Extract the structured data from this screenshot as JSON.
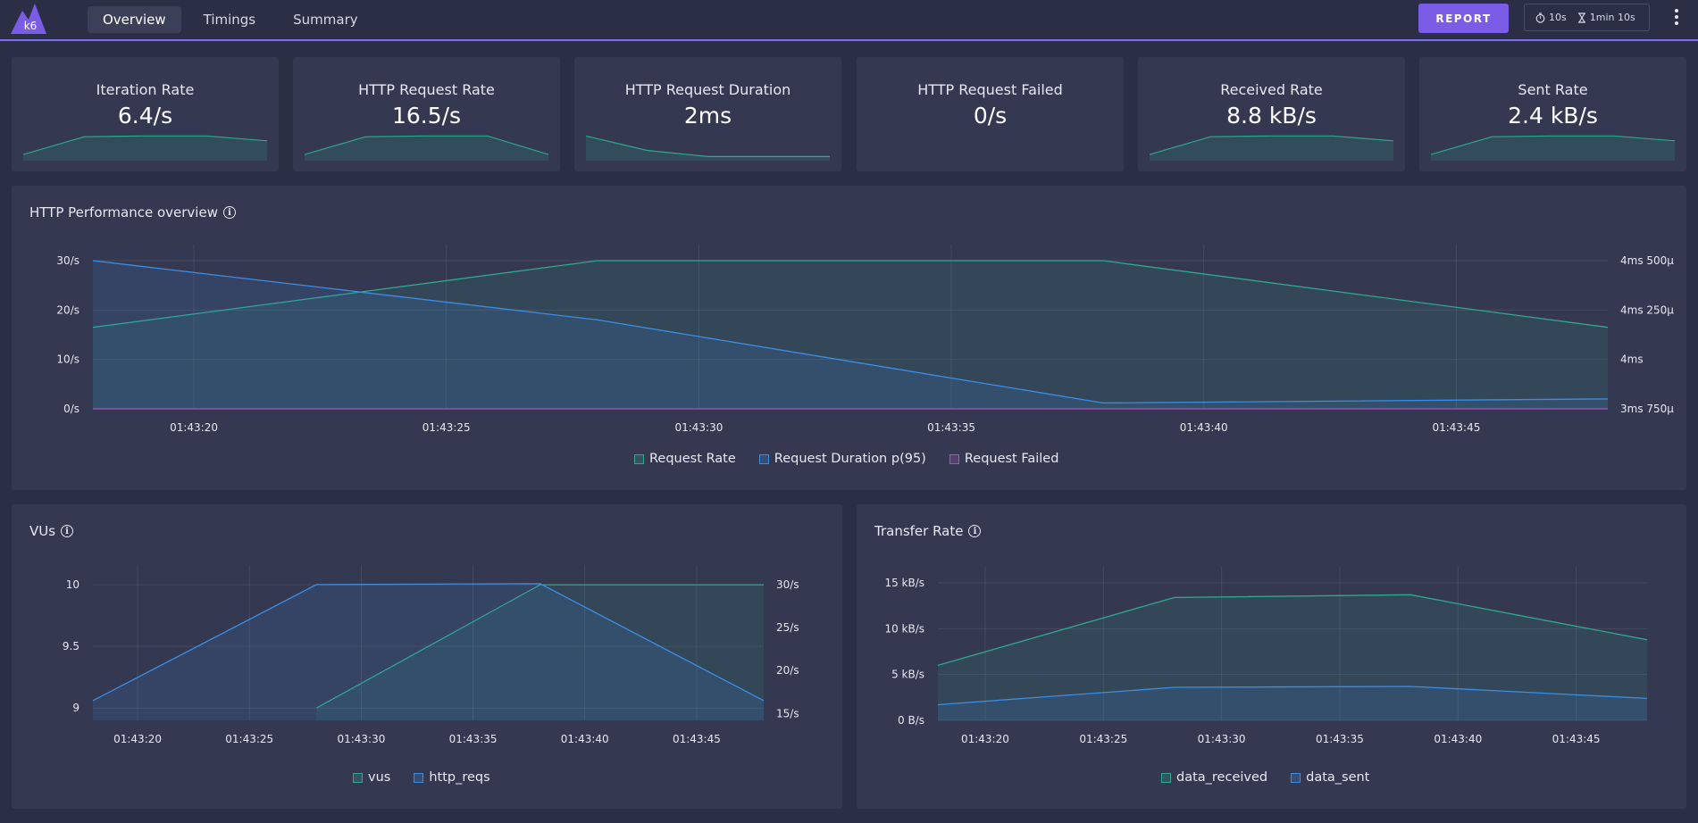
{
  "colors": {
    "accent": "#7b5ce6",
    "teal": "#2fa88f",
    "blue": "#3a8ee6",
    "magenta": "#b44fc2"
  },
  "header": {
    "logo_text": "k6",
    "tabs": [
      {
        "label": "Overview",
        "active": true
      },
      {
        "label": "Timings",
        "active": false
      },
      {
        "label": "Summary",
        "active": false
      }
    ],
    "report_label": "REPORT",
    "period": {
      "icon": "stopwatch-icon",
      "value": "10s"
    },
    "duration": {
      "icon": "hourglass-icon",
      "value": "1min 10s"
    },
    "menu_icon": "kebab-menu-icon"
  },
  "stats": [
    {
      "title": "Iteration Rate",
      "value": "6.4/s",
      "spark": [
        1.5,
        5.8,
        6.0,
        6.0,
        4.8
      ],
      "sparkMax": 6.5
    },
    {
      "title": "HTTP Request Rate",
      "value": "16.5/s",
      "spark": [
        1.5,
        5.8,
        6.0,
        6.0,
        1.5
      ],
      "sparkMax": 6.5
    },
    {
      "title": "HTTP Request Duration",
      "value": "2ms",
      "spark": [
        6.0,
        2.5,
        1.0,
        1.0,
        1.0
      ],
      "sparkMax": 6.5
    },
    {
      "title": "HTTP Request Failed",
      "value": "0/s",
      "spark": [],
      "sparkMax": 6.5
    },
    {
      "title": "Received Rate",
      "value": "8.8 kB/s",
      "spark": [
        1.5,
        5.8,
        6.0,
        6.0,
        4.8
      ],
      "sparkMax": 6.5
    },
    {
      "title": "Sent Rate",
      "value": "2.4 kB/s",
      "spark": [
        1.5,
        5.8,
        6.0,
        6.0,
        4.8
      ],
      "sparkMax": 6.5
    }
  ],
  "panels": {
    "http": {
      "title": "HTTP Performance overview",
      "legend": [
        "Request Rate",
        "Request Duration p(95)",
        "Request Failed"
      ]
    },
    "vus": {
      "title": "VUs",
      "legend": [
        "vus",
        "http_reqs"
      ]
    },
    "transfer": {
      "title": "Transfer Rate",
      "legend": [
        "data_received",
        "data_sent"
      ]
    }
  },
  "chart_data": [
    {
      "type": "line",
      "title": "HTTP Performance overview",
      "x": [
        "01:43:18",
        "01:43:28",
        "01:43:38",
        "01:43:48"
      ],
      "x_ticks": [
        "01:43:20",
        "01:43:25",
        "01:43:30",
        "01:43:35",
        "01:43:40",
        "01:43:45"
      ],
      "y_ticks": [
        "0/s",
        "10/s",
        "20/s",
        "30/s"
      ],
      "y2_ticks": [
        "3ms 750µ",
        "4ms",
        "4ms 250µ",
        "4ms 500µ"
      ],
      "ylim": [
        0,
        30
      ],
      "y2lim": [
        3.75,
        4.5
      ],
      "legend_position": "bottom",
      "series": [
        {
          "name": "Request Rate",
          "axis": "left",
          "color": "#2fa88f",
          "values": [
            16.5,
            30,
            30,
            16.5
          ]
        },
        {
          "name": "Request Duration p(95)",
          "axis": "right",
          "color": "#3a8ee6",
          "values": [
            4.5,
            4.2,
            3.78,
            3.8
          ]
        },
        {
          "name": "Request Failed",
          "axis": "left",
          "color": "#b44fc2",
          "values": [
            0,
            0,
            0,
            0
          ]
        }
      ]
    },
    {
      "type": "line",
      "title": "VUs",
      "x": [
        "01:43:18",
        "01:43:28",
        "01:43:38",
        "01:43:48"
      ],
      "x_ticks": [
        "01:43:20",
        "01:43:25",
        "01:43:30",
        "01:43:35",
        "01:43:40",
        "01:43:45"
      ],
      "y_ticks": [
        "9",
        "9.5",
        "10"
      ],
      "y2_ticks": [
        "15/s",
        "20/s",
        "25/s",
        "30/s"
      ],
      "ylim": [
        8.9,
        10.03
      ],
      "y2lim": [
        14.2,
        30.4
      ],
      "legend_position": "bottom",
      "series": [
        {
          "name": "vus",
          "axis": "left",
          "color": "#2fa88f",
          "values": [
            null,
            9,
            10,
            10
          ]
        },
        {
          "name": "http_reqs",
          "axis": "right",
          "color": "#3a8ee6",
          "values": [
            16.5,
            30,
            30.1,
            16.5
          ]
        }
      ]
    },
    {
      "type": "line",
      "title": "Transfer Rate",
      "x": [
        "01:43:18",
        "01:43:28",
        "01:43:38",
        "01:43:48"
      ],
      "x_ticks": [
        "01:43:20",
        "01:43:25",
        "01:43:30",
        "01:43:35",
        "01:43:40",
        "01:43:45"
      ],
      "y_ticks": [
        "0 B/s",
        "5 kB/s",
        "10 kB/s",
        "15 kB/s"
      ],
      "ylim": [
        0,
        15
      ],
      "legend_position": "bottom",
      "series": [
        {
          "name": "data_received",
          "axis": "left",
          "color": "#2fa88f",
          "values": [
            6.0,
            13.4,
            13.7,
            8.8
          ]
        },
        {
          "name": "data_sent",
          "axis": "left",
          "color": "#3a8ee6",
          "values": [
            1.7,
            3.6,
            3.7,
            2.4
          ]
        }
      ]
    }
  ]
}
